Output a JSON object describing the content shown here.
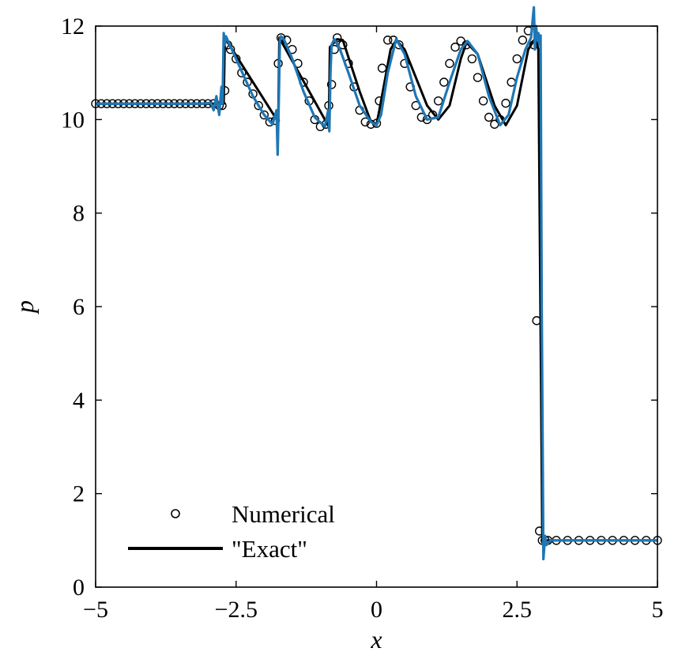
{
  "chart_data": {
    "type": "line",
    "title": "",
    "xlabel": "x",
    "ylabel": "p",
    "xlim": [
      -5,
      5
    ],
    "ylim": [
      0,
      12
    ],
    "x_ticks": [
      -5,
      -2.5,
      0,
      2.5,
      5
    ],
    "x_tick_labels": [
      "−5",
      "−2.5",
      "0",
      "2.5",
      "5"
    ],
    "y_ticks": [
      0,
      2,
      4,
      6,
      8,
      10,
      12
    ],
    "y_tick_labels": [
      "0",
      "2",
      "4",
      "6",
      "8",
      "10",
      "12"
    ],
    "grid": false,
    "legend_position": "bottom-left",
    "series": [
      {
        "name": "Numerical",
        "marker": "open-circle",
        "color": "#000000",
        "x": [
          -5,
          -4.9,
          -4.8,
          -4.7,
          -4.6,
          -4.5,
          -4.4,
          -4.3,
          -4.2,
          -4.1,
          -4,
          -3.9,
          -3.8,
          -3.7,
          -3.6,
          -3.5,
          -3.4,
          -3.3,
          -3.2,
          -3.1,
          -3,
          -2.9,
          -2.8,
          -2.75,
          -2.7,
          -2.65,
          -2.6,
          -2.5,
          -2.4,
          -2.3,
          -2.2,
          -2.1,
          -2,
          -1.9,
          -1.8,
          -1.75,
          -1.7,
          -1.6,
          -1.5,
          -1.4,
          -1.3,
          -1.2,
          -1.1,
          -1,
          -0.9,
          -0.85,
          -0.8,
          -0.75,
          -0.7,
          -0.6,
          -0.5,
          -0.4,
          -0.3,
          -0.2,
          -0.1,
          0,
          0.05,
          0.1,
          0.2,
          0.3,
          0.4,
          0.5,
          0.6,
          0.7,
          0.8,
          0.9,
          1,
          1.1,
          1.2,
          1.3,
          1.4,
          1.5,
          1.6,
          1.7,
          1.8,
          1.9,
          2,
          2.1,
          2.2,
          2.3,
          2.4,
          2.5,
          2.6,
          2.7,
          2.8,
          2.85,
          2.9,
          2.95,
          3,
          3.05,
          3.2,
          3.4,
          3.6,
          3.8,
          4,
          4.2,
          4.4,
          4.6,
          4.8,
          5
        ],
        "y": [
          10.34,
          10.34,
          10.34,
          10.34,
          10.34,
          10.34,
          10.34,
          10.34,
          10.34,
          10.34,
          10.34,
          10.34,
          10.34,
          10.34,
          10.34,
          10.34,
          10.34,
          10.34,
          10.34,
          10.34,
          10.34,
          10.34,
          10.3,
          10.3,
          10.62,
          11.6,
          11.5,
          11.3,
          11,
          10.8,
          10.55,
          10.3,
          10.1,
          9.95,
          9.98,
          11.2,
          11.75,
          11.7,
          11.5,
          11.2,
          10.8,
          10.4,
          10,
          9.85,
          9.9,
          10.3,
          10.75,
          11.5,
          11.75,
          11.6,
          11.2,
          10.7,
          10.2,
          9.95,
          9.9,
          9.92,
          10.4,
          11.1,
          11.7,
          11.7,
          11.6,
          11.2,
          10.7,
          10.3,
          10.05,
          10,
          10.1,
          10.4,
          10.8,
          11.2,
          11.55,
          11.68,
          11.6,
          11.3,
          10.9,
          10.4,
          10.05,
          9.9,
          10,
          10.35,
          10.8,
          11.3,
          11.7,
          11.9,
          11.6,
          5.7,
          1.2,
          1,
          1,
          1,
          1,
          1,
          1,
          1,
          1,
          1,
          1,
          1,
          1,
          1
        ]
      },
      {
        "name": "\"Exact\"",
        "style": "solid",
        "color": "#000000",
        "x": [
          -5,
          -2.72,
          -2.7,
          -1.75,
          -1.73,
          -0.85,
          -0.83,
          -0.7,
          -0.6,
          -0.3,
          -0.1,
          0,
          0.05,
          0.25,
          0.35,
          0.5,
          0.9,
          1.1,
          1.3,
          1.5,
          1.6,
          1.8,
          2.1,
          2.3,
          2.5,
          2.7,
          2.83,
          2.88,
          2.95,
          5
        ],
        "y": [
          10.34,
          10.34,
          11.75,
          9.95,
          11.75,
          9.85,
          11.55,
          11.72,
          11.7,
          10.6,
          9.95,
          9.9,
          10.2,
          11.5,
          11.7,
          11.5,
          10.3,
          10,
          10.3,
          11.3,
          11.65,
          11.4,
          10.3,
          9.88,
          10.3,
          11.5,
          11.75,
          11.5,
          1,
          1
        ]
      },
      {
        "name": "",
        "style": "solid",
        "color": "#1f77b4",
        "x": [
          -5,
          -3.1,
          -2.95,
          -2.9,
          -2.85,
          -2.8,
          -2.76,
          -2.74,
          -2.72,
          -2.7,
          -2.68,
          -2.5,
          -2.2,
          -2,
          -1.85,
          -1.78,
          -1.76,
          -1.74,
          -1.72,
          -1.7,
          -1.65,
          -1.5,
          -1.3,
          -1.1,
          -0.92,
          -0.86,
          -0.84,
          -0.82,
          -0.8,
          -0.75,
          -0.65,
          -0.5,
          -0.3,
          -0.1,
          0,
          0.08,
          0.2,
          0.35,
          0.5,
          0.7,
          0.9,
          1.1,
          1.3,
          1.5,
          1.62,
          1.8,
          2,
          2.2,
          2.35,
          2.5,
          2.65,
          2.75,
          2.8,
          2.82,
          2.84,
          2.86,
          2.88,
          2.9,
          2.92,
          2.94,
          2.97,
          3,
          3.02,
          3.1,
          5
        ],
        "y": [
          10.34,
          10.34,
          10.36,
          10.2,
          10.5,
          10.1,
          10.7,
          10.34,
          11.85,
          11.6,
          11.78,
          11.3,
          10.5,
          10.1,
          9.9,
          10.2,
          9.25,
          10.4,
          11.7,
          11.78,
          11.72,
          11.3,
          10.6,
          10.05,
          9.85,
          10.2,
          9.75,
          11.0,
          11.6,
          11.72,
          11.5,
          11.0,
          10.3,
          9.95,
          9.88,
          10.1,
          11.0,
          11.72,
          11.4,
          10.5,
          10.0,
          10.05,
          10.8,
          11.5,
          11.68,
          11.4,
          10.5,
          9.88,
          10.1,
          10.9,
          11.5,
          11.75,
          12.4,
          11.5,
          12.0,
          11.7,
          11.85,
          11.6,
          11.8,
          6.0,
          0.6,
          1.1,
          0.9,
          1,
          1
        ]
      }
    ]
  }
}
